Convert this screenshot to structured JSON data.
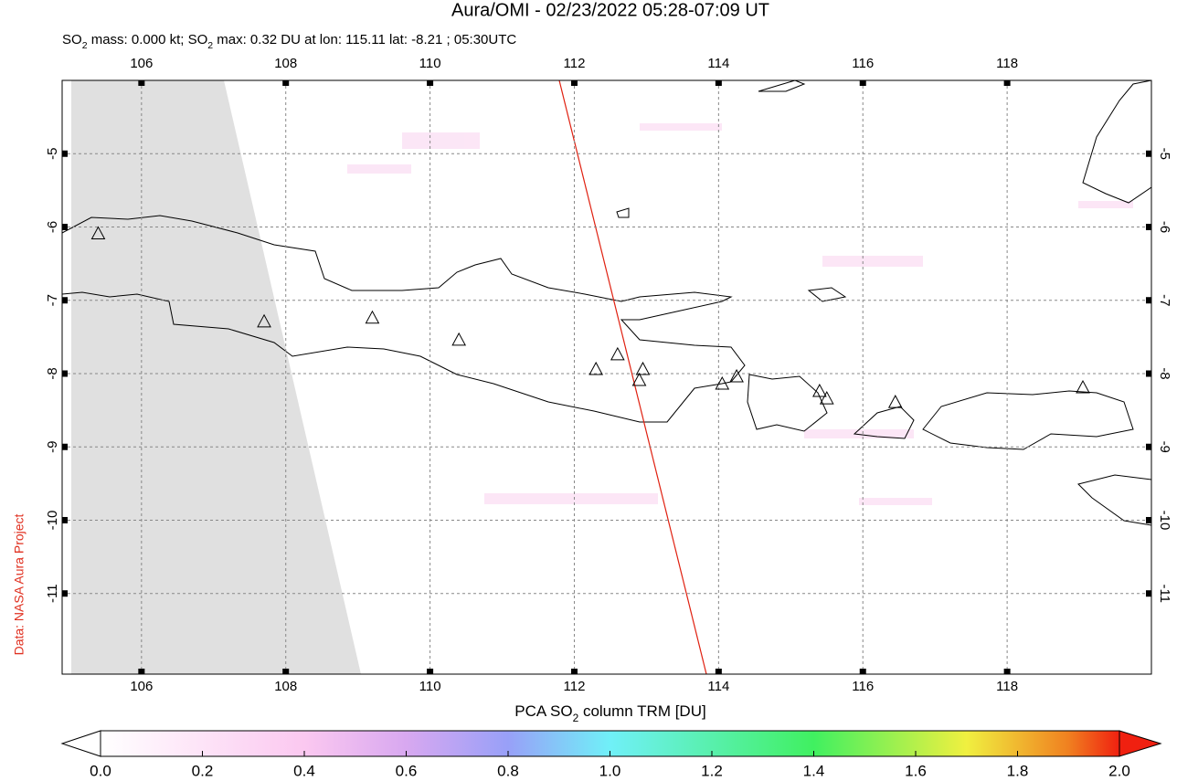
{
  "chart_data": {
    "type": "map",
    "title": "Aura/OMI - 02/23/2022 05:28-07:09 UT",
    "subtitle_parts": [
      "SO",
      "2",
      " mass: 0.000 kt; SO",
      "2",
      " max: 0.32 DU at lon: 115.11 lat: -8.21 ; 05:30UTC"
    ],
    "side_label": "Data: NASA Aura Project",
    "xlim": [
      104.9,
      120
    ],
    "ylim": [
      -12.1,
      -4
    ],
    "xticks": [
      106,
      108,
      110,
      112,
      114,
      116,
      118
    ],
    "yticks": [
      -5,
      -6,
      -7,
      -8,
      -9,
      -10,
      -11
    ],
    "grid": true,
    "volcanoes": {
      "lon": [
        105.4,
        107.7,
        109.2,
        110.4,
        112.3,
        112.6,
        112.95,
        112.9,
        114.05,
        114.25,
        115.4,
        115.5,
        116.45,
        119.05
      ],
      "lat": [
        -6.1,
        -7.3,
        -7.25,
        -7.55,
        -7.95,
        -7.75,
        -7.95,
        -8.1,
        -8.15,
        -8.05,
        -8.25,
        -8.35,
        -8.4,
        -8.2
      ]
    },
    "colorbar": {
      "label_parts": [
        "PCA SO",
        "2",
        " column TRM [DU]"
      ],
      "lim": [
        0,
        2
      ],
      "ticks": [
        {
          "value": 0,
          "label": "0.0"
        },
        {
          "value": 0.2,
          "label": "0.2"
        },
        {
          "value": 0.4,
          "label": "0.4"
        },
        {
          "value": 0.6,
          "label": "0.6"
        },
        {
          "value": 0.8,
          "label": "0.8"
        },
        {
          "value": 1.0,
          "label": "1.0"
        },
        {
          "value": 1.2,
          "label": "1.2"
        },
        {
          "value": 1.4,
          "label": "1.4"
        },
        {
          "value": 1.6,
          "label": "1.6"
        },
        {
          "value": 1.8,
          "label": "1.8"
        },
        {
          "value": 2.0,
          "label": "2.0"
        }
      ]
    }
  }
}
